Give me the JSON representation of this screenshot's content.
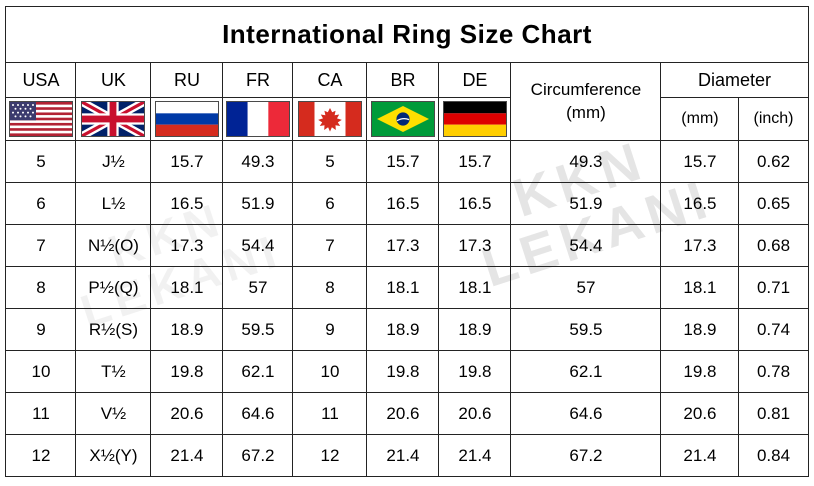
{
  "title": "International Ring Size Chart",
  "watermark": {
    "line1": "KKN",
    "line2": "LEKANI"
  },
  "header": {
    "countries": [
      {
        "code": "USA"
      },
      {
        "code": "UK"
      },
      {
        "code": "RU"
      },
      {
        "code": "FR"
      },
      {
        "code": "CA"
      },
      {
        "code": "BR"
      },
      {
        "code": "DE"
      }
    ],
    "circumference_line1": "Circumference",
    "circumference_line2": "(mm)",
    "diameter": "Diameter",
    "diameter_mm": "(mm)",
    "diameter_inch": "(inch)"
  },
  "chart_data": {
    "type": "table",
    "title": "International Ring Size Chart",
    "columns": [
      "USA",
      "UK",
      "RU",
      "FR",
      "CA",
      "BR",
      "DE",
      "Circumference (mm)",
      "Diameter (mm)",
      "Diameter (inch)"
    ],
    "rows": [
      [
        "5",
        "J½",
        "15.7",
        "49.3",
        "5",
        "15.7",
        "15.7",
        "49.3",
        "15.7",
        "0.62"
      ],
      [
        "6",
        "L½",
        "16.5",
        "51.9",
        "6",
        "16.5",
        "16.5",
        "51.9",
        "16.5",
        "0.65"
      ],
      [
        "7",
        "N½(O)",
        "17.3",
        "54.4",
        "7",
        "17.3",
        "17.3",
        "54.4",
        "17.3",
        "0.68"
      ],
      [
        "8",
        "P½(Q)",
        "18.1",
        "57",
        "8",
        "18.1",
        "18.1",
        "57",
        "18.1",
        "0.71"
      ],
      [
        "9",
        "R½(S)",
        "18.9",
        "59.5",
        "9",
        "18.9",
        "18.9",
        "59.5",
        "18.9",
        "0.74"
      ],
      [
        "10",
        "T½",
        "19.8",
        "62.1",
        "10",
        "19.8",
        "19.8",
        "62.1",
        "19.8",
        "0.78"
      ],
      [
        "11",
        "V½",
        "20.6",
        "64.6",
        "11",
        "20.6",
        "20.6",
        "64.6",
        "20.6",
        "0.81"
      ],
      [
        "12",
        "X½(Y)",
        "21.4",
        "67.2",
        "12",
        "21.4",
        "21.4",
        "67.2",
        "21.4",
        "0.84"
      ]
    ]
  }
}
